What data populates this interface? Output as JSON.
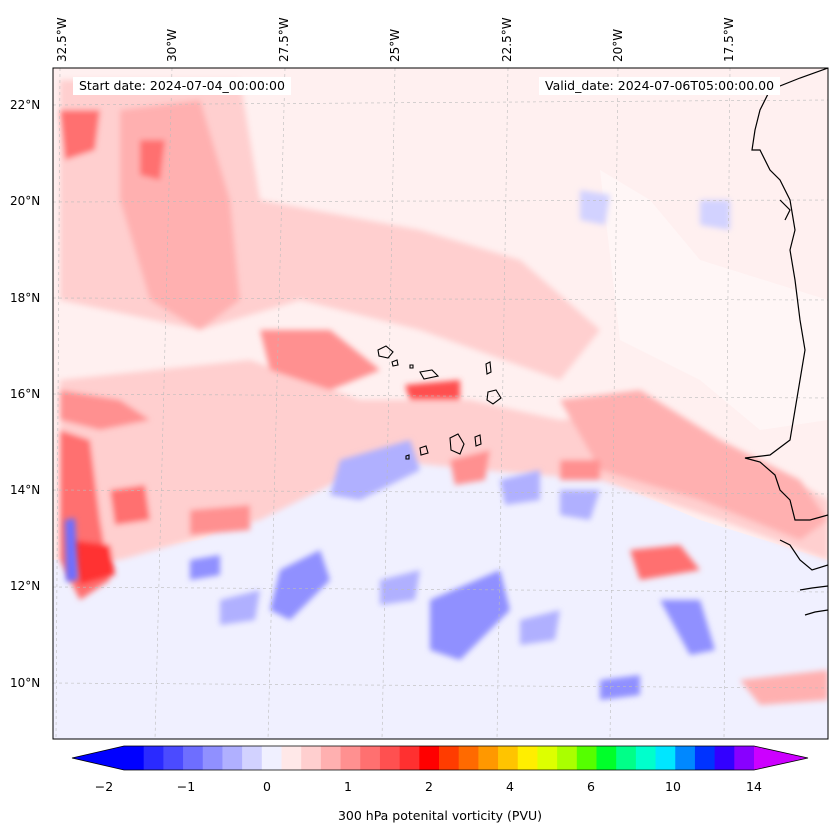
{
  "map": {
    "start_date": "Start date: 2024-07-04_00:00:00",
    "valid_date": "Valid_date: 2024-07-06T05:00:00.00",
    "longitude_labels": [
      "32.5°W",
      "30°W",
      "27.5°W",
      "25°W",
      "22.5°W",
      "20°W",
      "17.5°W"
    ],
    "latitude_labels": [
      "22°N",
      "20°N",
      "18°N",
      "16°N",
      "14°N",
      "12°N",
      "10°N"
    ]
  },
  "colorbar": {
    "label": "300 hPa potenital vorticity (PVU)",
    "tick_labels": [
      "−2",
      "−1",
      "0",
      "1",
      "2",
      "4",
      "6",
      "10",
      "14"
    ],
    "colors": [
      "#0000ff",
      "#2a2aff",
      "#4b4bff",
      "#6e6eff",
      "#9090ff",
      "#b0b0ff",
      "#d2d2ff",
      "#f0f0ff",
      "#ffe8e8",
      "#ffcfcf",
      "#ffb0b0",
      "#ff9090",
      "#ff7070",
      "#ff5050",
      "#ff3030",
      "#ff0000",
      "#ff3c00",
      "#ff6a00",
      "#ff9800",
      "#ffc400",
      "#ffee00",
      "#ddff00",
      "#aaff00",
      "#55ff00",
      "#00ff2a",
      "#00ff88",
      "#00ffcc",
      "#00e6ff",
      "#0088ff",
      "#0033ff",
      "#3300ff",
      "#8800ff"
    ],
    "under_color": "#0000ff",
    "over_color": "#cc00ff"
  }
}
